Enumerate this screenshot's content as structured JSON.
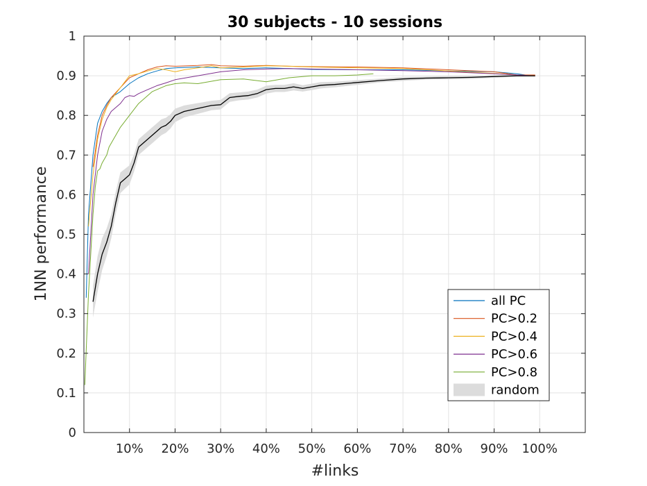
{
  "chart_data": {
    "type": "line",
    "title": "30 subjects - 10 sessions",
    "xlabel": "#links",
    "ylabel": "1NN performance",
    "xlim": [
      0,
      1.1
    ],
    "ylim": [
      0,
      1
    ],
    "grid": true,
    "legend_position": "bottom-right",
    "x_ticks": [
      0.1,
      0.2,
      0.3,
      0.4,
      0.5,
      0.6,
      0.7,
      0.8,
      0.9,
      1.0
    ],
    "x_tick_labels": [
      "10%",
      "20%",
      "30%",
      "40%",
      "50%",
      "60%",
      "70%",
      "80%",
      "90%",
      "100%"
    ],
    "y_ticks": [
      0,
      0.1,
      0.2,
      0.3,
      0.4,
      0.5,
      0.6,
      0.7,
      0.8,
      0.9,
      1
    ],
    "y_tick_labels": [
      "0",
      "0.1",
      "0.2",
      "0.3",
      "0.4",
      "0.5",
      "0.6",
      "0.7",
      "0.8",
      "0.9",
      "1"
    ],
    "series": [
      {
        "name": "all PC",
        "color": "#0072BD",
        "x": [
          0.005,
          0.01,
          0.02,
          0.03,
          0.04,
          0.05,
          0.06,
          0.08,
          0.1,
          0.12,
          0.14,
          0.16,
          0.18,
          0.2,
          0.25,
          0.3,
          0.35,
          0.4,
          0.45,
          0.5,
          0.6,
          0.7,
          0.8,
          0.9,
          0.95,
          0.98
        ],
        "y": [
          0.34,
          0.55,
          0.7,
          0.78,
          0.81,
          0.83,
          0.845,
          0.86,
          0.88,
          0.895,
          0.905,
          0.912,
          0.918,
          0.92,
          0.922,
          0.92,
          0.918,
          0.92,
          0.918,
          0.916,
          0.915,
          0.915,
          0.912,
          0.91,
          0.905,
          0.9
        ]
      },
      {
        "name": "PC>0.2",
        "color": "#D95319",
        "x": [
          0.02,
          0.03,
          0.04,
          0.05,
          0.06,
          0.08,
          0.1,
          0.12,
          0.14,
          0.16,
          0.18,
          0.2,
          0.25,
          0.28,
          0.3,
          0.35,
          0.4,
          0.45,
          0.5,
          0.6,
          0.7,
          0.8,
          0.9,
          0.95,
          0.99
        ],
        "y": [
          0.67,
          0.75,
          0.8,
          0.825,
          0.845,
          0.87,
          0.895,
          0.905,
          0.915,
          0.922,
          0.925,
          0.924,
          0.926,
          0.928,
          0.925,
          0.924,
          0.926,
          0.924,
          0.923,
          0.922,
          0.92,
          0.915,
          0.91,
          0.902,
          0.902
        ]
      },
      {
        "name": "PC>0.4",
        "color": "#EDB120",
        "x": [
          0.01,
          0.02,
          0.03,
          0.04,
          0.05,
          0.06,
          0.08,
          0.1,
          0.12,
          0.14,
          0.16,
          0.18,
          0.2,
          0.22,
          0.25,
          0.28,
          0.3,
          0.35,
          0.4,
          0.45,
          0.5,
          0.6,
          0.7,
          0.8,
          0.9,
          0.95,
          0.99
        ],
        "y": [
          0.52,
          0.65,
          0.74,
          0.79,
          0.82,
          0.84,
          0.87,
          0.9,
          0.905,
          0.912,
          0.918,
          0.915,
          0.91,
          0.915,
          0.92,
          0.925,
          0.92,
          0.922,
          0.925,
          0.924,
          0.922,
          0.92,
          0.918,
          0.912,
          0.906,
          0.902,
          0.9
        ]
      },
      {
        "name": "PC>0.6",
        "color": "#7E2F8E",
        "x": [
          0.01,
          0.02,
          0.03,
          0.04,
          0.05,
          0.06,
          0.08,
          0.09,
          0.1,
          0.11,
          0.12,
          0.14,
          0.16,
          0.18,
          0.2,
          0.25,
          0.3,
          0.35,
          0.4,
          0.45,
          0.5,
          0.6,
          0.7,
          0.8,
          0.9,
          0.95,
          0.99
        ],
        "y": [
          0.4,
          0.6,
          0.7,
          0.76,
          0.79,
          0.81,
          0.83,
          0.845,
          0.85,
          0.848,
          0.855,
          0.865,
          0.875,
          0.882,
          0.89,
          0.9,
          0.91,
          0.915,
          0.917,
          0.918,
          0.917,
          0.915,
          0.913,
          0.91,
          0.905,
          0.902,
          0.9
        ]
      },
      {
        "name": "PC>0.8",
        "color": "#77AC30",
        "x": [
          0.002,
          0.01,
          0.02,
          0.025,
          0.03,
          0.035,
          0.04,
          0.045,
          0.05,
          0.055,
          0.06,
          0.07,
          0.08,
          0.1,
          0.12,
          0.15,
          0.18,
          0.2,
          0.22,
          0.25,
          0.3,
          0.35,
          0.4,
          0.45,
          0.5,
          0.55,
          0.6,
          0.635
        ],
        "y": [
          0.12,
          0.35,
          0.55,
          0.62,
          0.66,
          0.665,
          0.68,
          0.69,
          0.7,
          0.72,
          0.73,
          0.75,
          0.77,
          0.8,
          0.83,
          0.86,
          0.875,
          0.88,
          0.882,
          0.88,
          0.89,
          0.892,
          0.885,
          0.895,
          0.9,
          0.9,
          0.902,
          0.905
        ]
      },
      {
        "name": "random",
        "color": "#000000",
        "band_color": "#DCDCDC",
        "x": [
          0.02,
          0.03,
          0.04,
          0.05,
          0.06,
          0.07,
          0.08,
          0.09,
          0.1,
          0.11,
          0.12,
          0.13,
          0.14,
          0.15,
          0.16,
          0.17,
          0.18,
          0.19,
          0.2,
          0.22,
          0.24,
          0.26,
          0.28,
          0.3,
          0.32,
          0.34,
          0.36,
          0.38,
          0.4,
          0.42,
          0.44,
          0.46,
          0.48,
          0.5,
          0.52,
          0.55,
          0.6,
          0.65,
          0.7,
          0.75,
          0.8,
          0.85,
          0.9,
          0.95,
          0.99
        ],
        "y": [
          0.33,
          0.4,
          0.45,
          0.48,
          0.52,
          0.58,
          0.63,
          0.64,
          0.65,
          0.68,
          0.72,
          0.73,
          0.74,
          0.75,
          0.76,
          0.77,
          0.775,
          0.785,
          0.8,
          0.81,
          0.815,
          0.82,
          0.825,
          0.827,
          0.845,
          0.848,
          0.85,
          0.855,
          0.865,
          0.868,
          0.868,
          0.872,
          0.868,
          0.872,
          0.876,
          0.878,
          0.883,
          0.888,
          0.892,
          0.894,
          0.895,
          0.896,
          0.898,
          0.9,
          0.9
        ],
        "band_halfwidth": [
          0.04,
          0.045,
          0.04,
          0.035,
          0.03,
          0.028,
          0.026,
          0.025,
          0.024,
          0.022,
          0.02,
          0.02,
          0.02,
          0.02,
          0.02,
          0.02,
          0.019,
          0.018,
          0.017,
          0.015,
          0.014,
          0.013,
          0.012,
          0.012,
          0.011,
          0.01,
          0.01,
          0.01,
          0.01,
          0.009,
          0.009,
          0.009,
          0.008,
          0.008,
          0.008,
          0.007,
          0.006,
          0.005,
          0.005,
          0.004,
          0.004,
          0.004,
          0.003,
          0.003,
          0.003
        ]
      }
    ]
  }
}
